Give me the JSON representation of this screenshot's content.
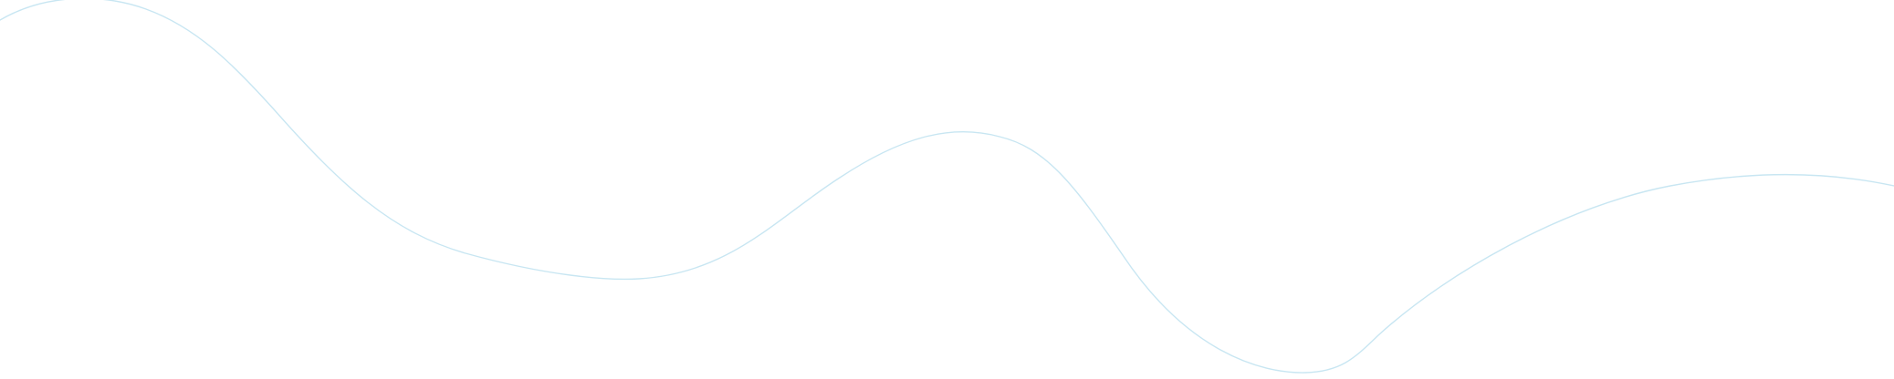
{
  "decoration": {
    "wave_color": "#c8e6f2",
    "background_color": "#ffffff"
  }
}
